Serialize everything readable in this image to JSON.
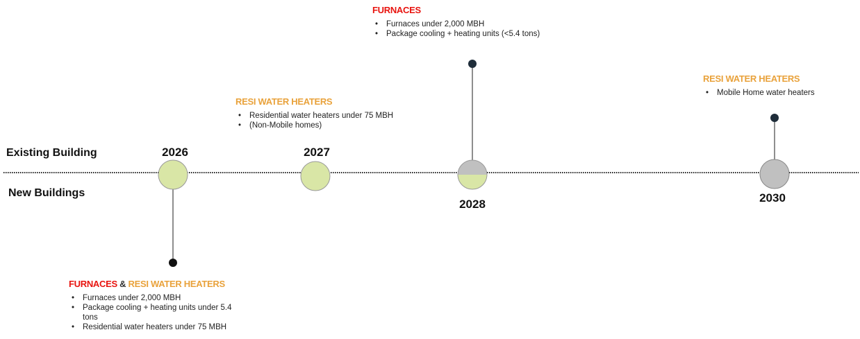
{
  "rows": [
    "Existing Building",
    "New Buildings"
  ],
  "milestones": [
    {
      "year": "2026",
      "callout": {
        "title": [
          "FURNACES",
          "&",
          "RESI WATER HEATERS"
        ],
        "items": [
          "Furnaces under 2,000 MBH",
          "Package cooling + heating units under 5.4 tons",
          "Residential water heaters under 75 MBH"
        ]
      }
    },
    {
      "year": "2027",
      "callout": {
        "title": [
          "RESI WATER HEATERS"
        ],
        "items": [
          "Residential water heaters under 75 MBH",
          "(Non-Mobile homes)"
        ]
      }
    },
    {
      "year": "2028",
      "callout": {
        "title": [
          "FURNACES"
        ],
        "items": [
          "Furnaces under 2,000 MBH",
          "Package cooling + heating units (<5.4 tons)"
        ]
      }
    },
    {
      "year": "2030",
      "callout": {
        "title": [
          "RESI WATER HEATERS"
        ],
        "items": [
          "Mobile Home water heaters"
        ]
      }
    }
  ]
}
